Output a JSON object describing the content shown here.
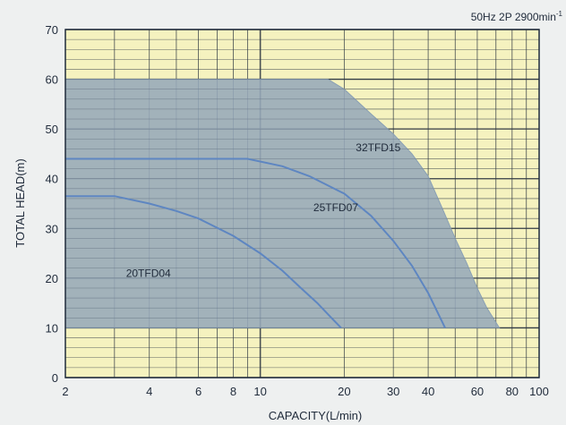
{
  "chart_data": {
    "type": "area",
    "note": "50Hz 2P 2900min",
    "note_superscript": "-1",
    "xlabel": "CAPACITY(L/min)",
    "ylabel": "TOTAL HEAD(m)",
    "x_scale": "log",
    "xlim": [
      2,
      100
    ],
    "ylim": [
      0,
      70
    ],
    "x_tick_labels": [
      {
        "value": 2,
        "label": "2"
      },
      {
        "value": 4,
        "label": "4"
      },
      {
        "value": 6,
        "label": "6"
      },
      {
        "value": 8,
        "label": "8"
      },
      {
        "value": 10,
        "label": "10"
      },
      {
        "value": 20,
        "label": "20"
      },
      {
        "value": 30,
        "label": "30"
      },
      {
        "value": 40,
        "label": "40"
      },
      {
        "value": 60,
        "label": "60"
      },
      {
        "value": 80,
        "label": "80"
      },
      {
        "value": 100,
        "label": "100"
      }
    ],
    "y_tick_labels": [
      {
        "value": 0,
        "label": "0"
      },
      {
        "value": 10,
        "label": "10"
      },
      {
        "value": 20,
        "label": "20"
      },
      {
        "value": 30,
        "label": "30"
      },
      {
        "value": 40,
        "label": "40"
      },
      {
        "value": 50,
        "label": "50"
      },
      {
        "value": 60,
        "label": "60"
      },
      {
        "value": 70,
        "label": "70"
      }
    ],
    "grid": true,
    "colors": {
      "plot_background": "#f5f2bf",
      "operating_region": "#96a9b9",
      "curve": "#5e86c1",
      "grid": "#2a3440",
      "page_background": "#eef0f0"
    },
    "operating_region": {
      "name": "32TFD15",
      "x": [
        2,
        17.5,
        20,
        25,
        30,
        35,
        40,
        45,
        50,
        55,
        60,
        65,
        72
      ],
      "y": [
        60,
        60,
        58,
        53,
        49,
        45,
        40.5,
        34,
        28,
        23,
        18,
        14,
        10
      ],
      "base": 10
    },
    "series": [
      {
        "name": "25TFD07",
        "x": [
          2,
          4,
          6,
          8,
          9,
          12,
          15,
          20,
          25,
          30,
          35,
          40,
          46
        ],
        "y": [
          44,
          44,
          44,
          44,
          44,
          42.5,
          40.5,
          37,
          32.5,
          27.5,
          22.5,
          17,
          10
        ]
      },
      {
        "name": "20TFD04",
        "x": [
          2,
          3,
          4,
          5,
          6,
          8,
          10,
          12,
          14,
          16,
          18,
          19.5
        ],
        "y": [
          36.5,
          36.5,
          35,
          33.5,
          32,
          28.5,
          25,
          21.5,
          18,
          15,
          12,
          10
        ]
      }
    ],
    "series_label_positions": [
      {
        "name": "32TFD15",
        "x": 22,
        "y": 45.5
      },
      {
        "name": "25TFD07",
        "x": 15.5,
        "y": 33.5
      },
      {
        "name": "20TFD04",
        "x": 3.3,
        "y": 20.2
      }
    ]
  }
}
